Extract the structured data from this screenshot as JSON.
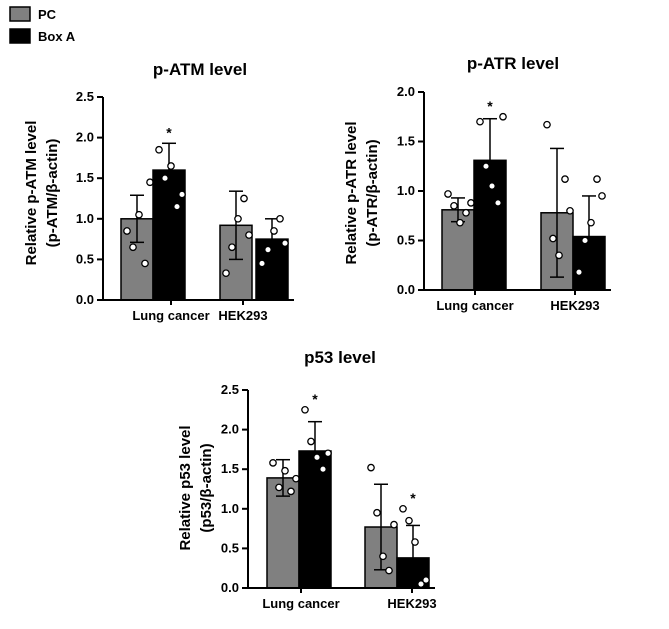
{
  "legend": [
    {
      "label": "PC",
      "color": "#808080"
    },
    {
      "label": "Box A",
      "color": "#000000"
    }
  ],
  "colors": {
    "pc": "#808080",
    "boxa": "#000000",
    "axis": "#000000",
    "point_fill": "#ffffff"
  },
  "chart_data": [
    {
      "type": "bar",
      "title": "p-ATM  level",
      "ylabel_lines": [
        "Relative p-ATM level",
        "(p-ATM/β-actin)"
      ],
      "ylim": [
        0,
        2.5
      ],
      "yticks": [
        "0.0",
        "0.5",
        "1.0",
        "1.5",
        "2.0",
        "2.5"
      ],
      "categories": [
        "Lung cancer",
        "HEK293"
      ],
      "series": [
        {
          "name": "PC",
          "values": [
            1.0,
            0.92
          ],
          "errors": [
            0.29,
            0.42
          ],
          "points": [
            [
              0.85,
              0.65,
              1.05,
              0.45,
              1.45
            ],
            [
              0.33,
              0.65,
              1.0,
              1.25,
              0.8
            ]
          ]
        },
        {
          "name": "Box A",
          "values": [
            1.6,
            0.75
          ],
          "errors": [
            0.33,
            0.25
          ],
          "points": [
            [
              1.85,
              1.5,
              1.65,
              1.15,
              1.3
            ],
            [
              0.45,
              0.62,
              0.85,
              1.0,
              0.7
            ]
          ]
        }
      ],
      "annotations": [
        {
          "series": 1,
          "category": 0,
          "text": "*"
        }
      ]
    },
    {
      "type": "bar",
      "title": "p-ATR  level",
      "ylabel_lines": [
        "Relative p-ATR level",
        "(p-ATR/β-actin)"
      ],
      "ylim": [
        0,
        2.0
      ],
      "yticks": [
        "0.0",
        "0.5",
        "1.0",
        "1.5",
        "2.0"
      ],
      "categories": [
        "Lung cancer",
        "HEK293"
      ],
      "series": [
        {
          "name": "PC",
          "values": [
            0.81,
            0.78
          ],
          "errors": [
            0.12,
            0.65
          ],
          "points": [
            [
              0.97,
              0.85,
              0.68,
              0.78,
              0.88
            ],
            [
              1.67,
              0.52,
              0.35,
              1.12,
              0.8
            ]
          ]
        },
        {
          "name": "Box A",
          "values": [
            1.31,
            0.54
          ],
          "errors": [
            0.42,
            0.41
          ],
          "points": [
            [
              1.7,
              1.25,
              1.05,
              0.88,
              1.75
            ],
            [
              0.18,
              0.5,
              0.68,
              1.12,
              0.95
            ]
          ]
        }
      ],
      "annotations": [
        {
          "series": 1,
          "category": 0,
          "text": "*"
        }
      ]
    },
    {
      "type": "bar",
      "title": "p53 level",
      "ylabel_lines": [
        "Relative p53 level",
        "(p53/β-actin)"
      ],
      "ylim": [
        0,
        2.5
      ],
      "yticks": [
        "0.0",
        "0.5",
        "1.0",
        "1.5",
        "2.0",
        "2.5"
      ],
      "categories": [
        "Lung cancer",
        "HEK293"
      ],
      "series": [
        {
          "name": "PC",
          "values": [
            1.39,
            0.77
          ],
          "errors": [
            0.23,
            0.54
          ],
          "points": [
            [
              1.58,
              1.27,
              1.48,
              1.22,
              1.38
            ],
            [
              1.52,
              0.95,
              0.4,
              0.22,
              0.8
            ]
          ]
        },
        {
          "name": "Box A",
          "values": [
            1.73,
            0.38
          ],
          "errors": [
            0.37,
            0.41
          ],
          "points": [
            [
              2.25,
              1.85,
              1.65,
              1.5,
              1.7
            ],
            [
              1.0,
              0.85,
              0.58,
              0.05,
              0.1
            ]
          ]
        }
      ],
      "annotations": [
        {
          "series": 1,
          "category": 0,
          "text": "*"
        },
        {
          "series": 1,
          "category": 1,
          "text": "*"
        }
      ]
    }
  ]
}
